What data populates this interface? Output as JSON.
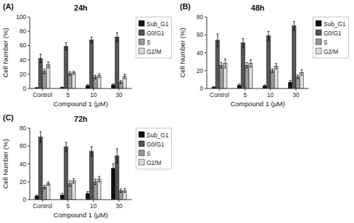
{
  "chart_data": [
    {
      "type": "bar",
      "title": "24h",
      "annotations": [
        "(A)"
      ],
      "x_label": "Compound 1 (μM)",
      "y_label": "Cell Number (%)",
      "categories": [
        "Control",
        "5",
        "10",
        "30"
      ],
      "series": [
        {
          "name": "Sub_G1",
          "color": "#111111",
          "values": [
            1.0,
            1.5,
            4.0,
            5.0
          ],
          "errors": [
            0.5,
            0.5,
            1.5,
            1.5
          ]
        },
        {
          "name": "G0/G1",
          "color": "#555555",
          "values": [
            42.0,
            59.0,
            68.0,
            72.0
          ],
          "errors": [
            6.0,
            5.0,
            4.0,
            6.0
          ]
        },
        {
          "name": "S",
          "color": "#999999",
          "values": [
            24.0,
            21.0,
            16.0,
            9.0
          ],
          "errors": [
            3.0,
            2.5,
            2.5,
            2.0
          ]
        },
        {
          "name": "G2/M",
          "color": "#dddddd",
          "values": [
            33.0,
            22.0,
            18.0,
            17.0
          ],
          "errors": [
            4.0,
            2.0,
            2.5,
            3.0
          ]
        }
      ],
      "ylim": [
        0,
        100
      ],
      "yticks": [
        0,
        20,
        40,
        60,
        80,
        100
      ],
      "legend": "right",
      "grid": false
    },
    {
      "type": "bar",
      "title": "48h",
      "annotations": [
        "(B)"
      ],
      "x_label": "Compound 1 (μM)",
      "y_label": "Cell Number (%)",
      "categories": [
        "Control",
        "5",
        "10",
        "30"
      ],
      "series": [
        {
          "name": "Sub_G1",
          "color": "#111111",
          "values": [
            1.5,
            3.5,
            3.0,
            7.0
          ],
          "errors": [
            0.5,
            1.5,
            1.0,
            2.0
          ]
        },
        {
          "name": "G0/G1",
          "color": "#555555",
          "values": [
            54.0,
            51.0,
            59.0,
            70.0
          ],
          "errors": [
            7.0,
            5.0,
            5.0,
            5.0
          ]
        },
        {
          "name": "S",
          "color": "#999999",
          "values": [
            26.0,
            26.0,
            20.0,
            13.0
          ],
          "errors": [
            3.0,
            3.0,
            2.0,
            2.0
          ]
        },
        {
          "name": "G2/M",
          "color": "#dddddd",
          "values": [
            28.0,
            28.0,
            25.0,
            18.0
          ],
          "errors": [
            5.0,
            4.0,
            3.0,
            3.0
          ]
        }
      ],
      "ylim": [
        0,
        80
      ],
      "yticks": [
        0,
        20,
        40,
        60,
        80
      ],
      "legend": "right",
      "grid": false
    },
    {
      "type": "bar",
      "title": "72h",
      "annotations": [
        "(C)"
      ],
      "x_label": "Compound 1 (μM)",
      "y_label": "Cell Number (%)",
      "categories": [
        "Control",
        "5",
        "10",
        "30"
      ],
      "series": [
        {
          "name": "Sub_G1",
          "color": "#111111",
          "values": [
            4.0,
            5.0,
            7.0,
            35.0
          ],
          "errors": [
            1.0,
            2.0,
            2.0,
            5.0
          ]
        },
        {
          "name": "G0/G1",
          "color": "#555555",
          "values": [
            70.0,
            59.0,
            54.0,
            49.0
          ],
          "errors": [
            6.0,
            5.0,
            5.0,
            8.0
          ]
        },
        {
          "name": "S",
          "color": "#999999",
          "values": [
            14.0,
            18.0,
            20.0,
            10.0
          ],
          "errors": [
            2.0,
            3.0,
            3.0,
            2.0
          ]
        },
        {
          "name": "G2/M",
          "color": "#dddddd",
          "values": [
            18.0,
            21.0,
            23.0,
            10.0
          ],
          "errors": [
            2.0,
            2.5,
            3.0,
            2.0
          ]
        }
      ],
      "ylim": [
        0,
        80
      ],
      "yticks": [
        0,
        20,
        40,
        60,
        80
      ],
      "legend": "right",
      "grid": false
    }
  ]
}
